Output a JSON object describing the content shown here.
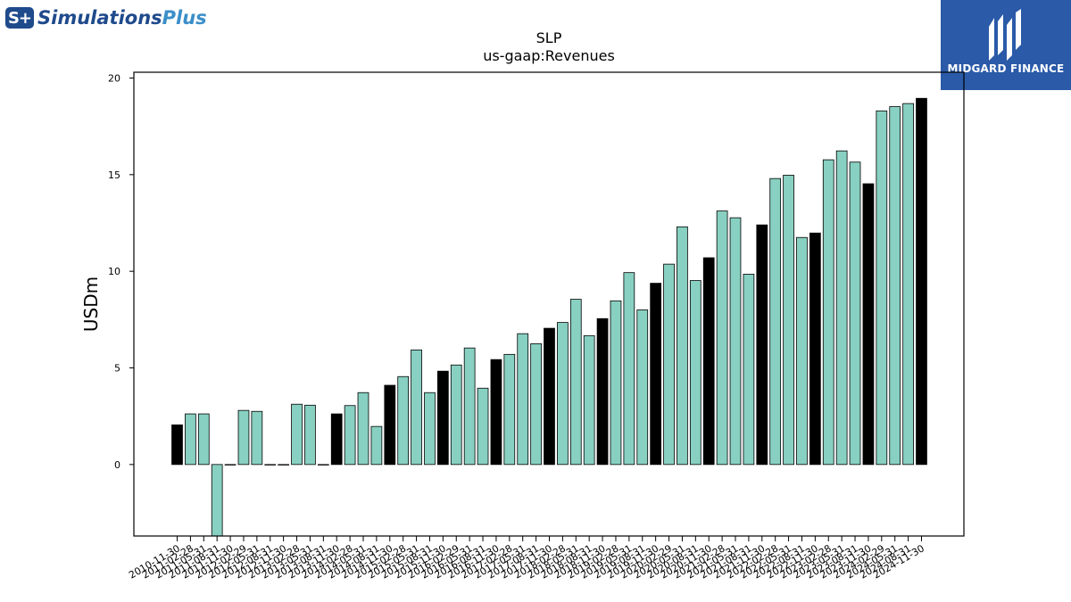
{
  "logos": {
    "left": {
      "badge": "S+",
      "brand_main": "Simulations",
      "brand_accent": "Plus"
    },
    "right": {
      "text": "MIDGARD FINANCE"
    }
  },
  "chart_data": {
    "type": "bar",
    "title": "SLP",
    "subtitle": "us-gaap:Revenues",
    "ylabel": "USDm",
    "xlabel": "",
    "ylim": [
      -3.7,
      20.3
    ],
    "yticks": [
      0,
      5,
      10,
      15,
      20
    ],
    "grid": false,
    "colors": {
      "quarter": "#88d0c1",
      "annual": "#000000",
      "edge": "#000000"
    },
    "categories": [
      "2010-11-30",
      "2011-02-28",
      "2011-05-31",
      "2011-08-31",
      "2011-11-30",
      "2012-02-29",
      "2012-05-31",
      "2012-08-31",
      "2012-11-30",
      "2013-02-28",
      "2013-05-31",
      "2013-08-31",
      "2013-11-30",
      "2014-02-28",
      "2014-05-31",
      "2014-08-31",
      "2014-11-30",
      "2015-02-28",
      "2015-05-31",
      "2015-08-31",
      "2015-11-30",
      "2016-02-29",
      "2016-05-31",
      "2016-08-31",
      "2016-11-30",
      "2017-02-28",
      "2017-05-31",
      "2017-08-31",
      "2017-11-30",
      "2018-02-28",
      "2018-05-31",
      "2018-08-31",
      "2018-11-30",
      "2019-02-28",
      "2019-05-31",
      "2019-08-31",
      "2019-11-30",
      "2020-02-29",
      "2020-05-31",
      "2020-08-31",
      "2020-11-30",
      "2021-02-28",
      "2021-05-31",
      "2021-08-31",
      "2021-11-30",
      "2022-02-28",
      "2022-05-31",
      "2022-08-31",
      "2022-11-30",
      "2023-02-28",
      "2023-05-31",
      "2023-08-31",
      "2023-11-30",
      "2024-02-29",
      "2024-05-31",
      "2024-08-31",
      "2024-11-30"
    ],
    "values": [
      2.05,
      2.62,
      2.62,
      -3.7,
      0,
      2.8,
      2.75,
      0,
      0,
      3.12,
      3.07,
      0,
      2.62,
      3.05,
      3.72,
      1.97,
      4.1,
      4.55,
      5.93,
      3.72,
      4.83,
      5.15,
      6.03,
      3.95,
      5.43,
      5.7,
      6.77,
      6.25,
      7.05,
      7.35,
      8.55,
      6.67,
      7.55,
      8.47,
      9.93,
      8.0,
      9.38,
      10.37,
      12.3,
      9.52,
      10.7,
      13.12,
      12.77,
      9.85,
      12.4,
      14.8,
      14.97,
      11.75,
      11.98,
      15.77,
      16.23,
      15.65,
      14.53,
      18.3,
      18.52,
      18.68,
      18.95
    ],
    "bar_kind": [
      "annual",
      "quarter",
      "quarter",
      "quarter",
      "quarter",
      "quarter",
      "quarter",
      "quarter",
      "annual",
      "quarter",
      "quarter",
      "quarter",
      "annual",
      "quarter",
      "quarter",
      "quarter",
      "annual",
      "quarter",
      "quarter",
      "quarter",
      "annual",
      "quarter",
      "quarter",
      "quarter",
      "annual",
      "quarter",
      "quarter",
      "quarter",
      "annual",
      "quarter",
      "quarter",
      "quarter",
      "annual",
      "quarter",
      "quarter",
      "quarter",
      "annual",
      "quarter",
      "quarter",
      "quarter",
      "annual",
      "quarter",
      "quarter",
      "quarter",
      "annual",
      "quarter",
      "quarter",
      "quarter",
      "annual",
      "quarter",
      "quarter",
      "quarter",
      "annual",
      "quarter",
      "quarter",
      "quarter",
      "annual"
    ]
  }
}
